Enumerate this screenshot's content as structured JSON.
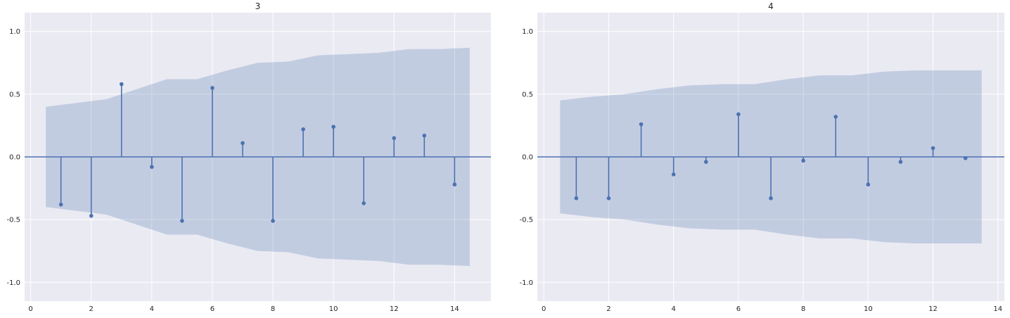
{
  "chart_data": [
    {
      "type": "stem",
      "title": "3",
      "xlabel": "",
      "ylabel": "",
      "xlim": [
        -0.2,
        15.2
      ],
      "ylim": [
        -1.15,
        1.15
      ],
      "xticks": [
        0,
        2,
        4,
        6,
        8,
        10,
        12,
        14
      ],
      "yticks": [
        -1.0,
        -0.5,
        0.0,
        0.5,
        1.0
      ],
      "grid": true,
      "colors": {
        "stem": "#4c72b0",
        "band": "#4c72b0",
        "background": "#eaeaf2",
        "grid": "#ffffff"
      },
      "lags": [
        1,
        2,
        3,
        4,
        5,
        6,
        7,
        8,
        9,
        10,
        11,
        12,
        13,
        14
      ],
      "values": [
        -0.38,
        -0.47,
        0.58,
        -0.08,
        -0.51,
        0.55,
        0.11,
        -0.51,
        0.22,
        0.24,
        -0.37,
        0.15,
        0.17,
        -0.22
      ],
      "confint_x": [
        0.5,
        1.5,
        2.5,
        3.5,
        4.5,
        5.5,
        6.5,
        7.5,
        8.5,
        9.5,
        10.5,
        11.5,
        12.5,
        13.5,
        14.5
      ],
      "confint_upper": [
        0.4,
        0.43,
        0.46,
        0.54,
        0.62,
        0.62,
        0.69,
        0.75,
        0.76,
        0.81,
        0.82,
        0.83,
        0.86,
        0.86,
        0.87
      ]
    },
    {
      "type": "stem",
      "title": "4",
      "xlabel": "",
      "ylabel": "",
      "xlim": [
        -0.2,
        14.2
      ],
      "ylim": [
        -1.15,
        1.15
      ],
      "xticks": [
        0,
        2,
        4,
        6,
        8,
        10,
        12,
        14
      ],
      "yticks": [
        -1.0,
        -0.5,
        0.0,
        0.5,
        1.0
      ],
      "grid": true,
      "colors": {
        "stem": "#4c72b0",
        "band": "#4c72b0",
        "background": "#eaeaf2",
        "grid": "#ffffff"
      },
      "lags": [
        1,
        2,
        3,
        4,
        5,
        6,
        7,
        8,
        9,
        10,
        11,
        12,
        13
      ],
      "values": [
        -0.33,
        -0.33,
        0.26,
        -0.14,
        -0.04,
        0.34,
        -0.33,
        -0.03,
        0.32,
        -0.22,
        -0.04,
        0.07,
        -0.01
      ],
      "confint_x": [
        0.5,
        1.5,
        2.5,
        3.5,
        4.5,
        5.5,
        6.5,
        7.5,
        8.5,
        9.5,
        10.5,
        11.5,
        12.5,
        13.5
      ],
      "confint_upper": [
        0.45,
        0.48,
        0.5,
        0.54,
        0.57,
        0.58,
        0.58,
        0.62,
        0.65,
        0.65,
        0.68,
        0.69,
        0.69,
        0.69
      ]
    }
  ]
}
